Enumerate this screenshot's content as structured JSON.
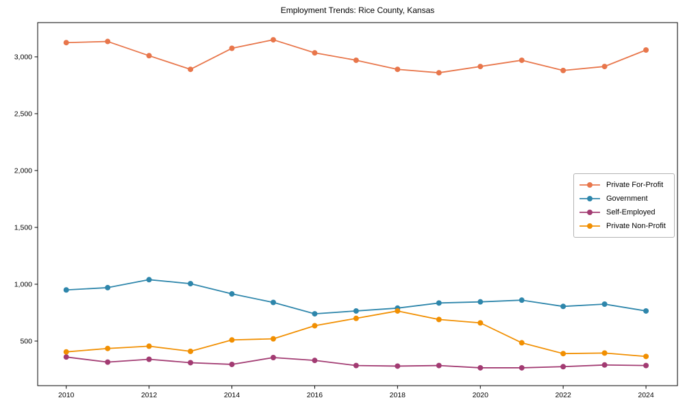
{
  "chart_data": {
    "type": "line",
    "title": "Employment Trends: Rice County, Kansas",
    "xlabel": "",
    "ylabel": "",
    "x": [
      2010,
      2011,
      2012,
      2013,
      2014,
      2015,
      2016,
      2017,
      2018,
      2019,
      2020,
      2021,
      2022,
      2023,
      2024
    ],
    "series": [
      {
        "name": "Private For-Profit",
        "color": "#e8764b",
        "values": [
          3125,
          3135,
          3010,
          2890,
          3075,
          3150,
          3035,
          2970,
          2890,
          2860,
          2915,
          2970,
          2880,
          2915,
          3060
        ]
      },
      {
        "name": "Government",
        "color": "#2e86ab",
        "values": [
          950,
          970,
          1040,
          1005,
          915,
          840,
          740,
          765,
          790,
          835,
          845,
          860,
          805,
          825,
          765
        ]
      },
      {
        "name": "Self-Employed",
        "color": "#a23b72",
        "values": [
          360,
          315,
          340,
          310,
          295,
          355,
          330,
          285,
          280,
          285,
          265,
          265,
          275,
          290,
          285
        ]
      },
      {
        "name": "Private Non-Profit",
        "color": "#f18f01",
        "values": [
          405,
          435,
          455,
          410,
          510,
          520,
          635,
          700,
          765,
          690,
          660,
          485,
          390,
          395,
          365
        ]
      }
    ],
    "xticks": [
      2010,
      2012,
      2014,
      2016,
      2018,
      2020,
      2022,
      2024
    ],
    "xtick_labels": [
      "2010",
      "2012",
      "2014",
      "2016",
      "2018",
      "2020",
      "2022",
      "2024"
    ],
    "yticks": [
      500,
      1000,
      1500,
      2000,
      2500,
      3000
    ],
    "ytick_labels": [
      "500",
      "1,000",
      "1,500",
      "2,000",
      "2,500",
      "3,000"
    ],
    "xlim": [
      2009.31,
      2024.76
    ],
    "ylim": [
      108,
      3301
    ],
    "grid": false,
    "legend_position": "right-inside",
    "axis_color": "#000000",
    "marker": "circle",
    "background": "#ffffff"
  }
}
